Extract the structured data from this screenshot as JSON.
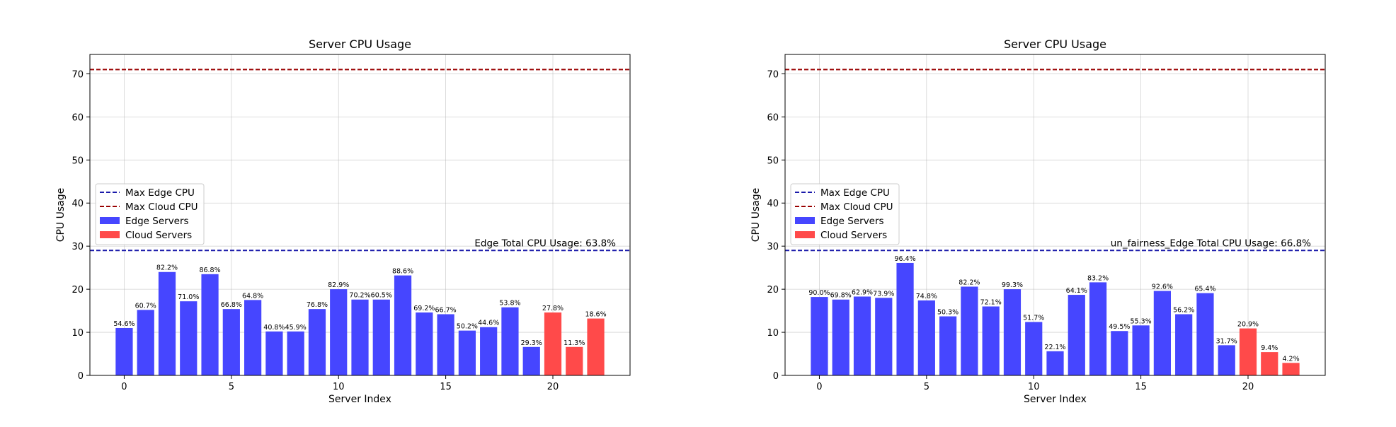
{
  "colors": {
    "edge": "#4646ff",
    "cloud": "#ff4a4a",
    "edge_line": "#1a1aaa",
    "cloud_line": "#990000"
  },
  "chart_data": [
    {
      "type": "bar",
      "title": "Server CPU Usage",
      "xlabel": "Server Index",
      "ylabel": "CPU Usage",
      "xlim": [
        -1.6,
        23.6
      ],
      "ylim": [
        0,
        74.5
      ],
      "xticks": [
        "0",
        "5",
        "10",
        "15",
        "20"
      ],
      "yticks": [
        "0",
        "10",
        "20",
        "30",
        "40",
        "50",
        "60",
        "70"
      ],
      "grid": true,
      "legend_position": "center-left",
      "legend": [
        "Max Edge CPU",
        "Max Cloud CPU",
        "Edge Servers",
        "Cloud Servers"
      ],
      "hlines": [
        {
          "name": "Max Edge CPU",
          "y": 29,
          "style": "dashed",
          "color": "edge_line"
        },
        {
          "name": "Max Cloud CPU",
          "y": 71,
          "style": "dashed",
          "color": "cloud_line"
        }
      ],
      "annotation": "Edge Total CPU Usage: 63.8%",
      "x": [
        0,
        1,
        2,
        3,
        4,
        5,
        6,
        7,
        8,
        9,
        10,
        11,
        12,
        13,
        14,
        15,
        16,
        17,
        18,
        19,
        20,
        21,
        22
      ],
      "values": [
        11,
        15.2,
        24,
        17.2,
        23.5,
        15.4,
        17.5,
        10.2,
        10.2,
        15.4,
        20,
        17.6,
        17.6,
        23.2,
        14.6,
        14.2,
        10.4,
        11.2,
        15.8,
        6.6,
        14.6,
        6.6,
        13.2
      ],
      "labels": [
        "54.6%",
        "60.7%",
        "82.2%",
        "71.0%",
        "86.8%",
        "66.8%",
        "64.8%",
        "40.8%",
        "45.9%",
        "76.8%",
        "82.9%",
        "70.2%",
        "60.5%",
        "88.6%",
        "69.2%",
        "66.7%",
        "50.2%",
        "44.6%",
        "53.8%",
        "29.3%",
        "27.8%",
        "11.3%",
        "18.6%"
      ],
      "series_type": [
        "edge",
        "edge",
        "edge",
        "edge",
        "edge",
        "edge",
        "edge",
        "edge",
        "edge",
        "edge",
        "edge",
        "edge",
        "edge",
        "edge",
        "edge",
        "edge",
        "edge",
        "edge",
        "edge",
        "edge",
        "cloud",
        "cloud",
        "cloud"
      ]
    },
    {
      "type": "bar",
      "title": "Server CPU Usage",
      "xlabel": "Server Index",
      "ylabel": "CPU Usage",
      "xlim": [
        -1.6,
        23.6
      ],
      "ylim": [
        0,
        74.5
      ],
      "xticks": [
        "0",
        "5",
        "10",
        "15",
        "20"
      ],
      "yticks": [
        "0",
        "10",
        "20",
        "30",
        "40",
        "50",
        "60",
        "70"
      ],
      "grid": true,
      "legend_position": "center-left",
      "legend": [
        "Max Edge CPU",
        "Max Cloud CPU",
        "Edge Servers",
        "Cloud Servers"
      ],
      "hlines": [
        {
          "name": "Max Edge CPU",
          "y": 29,
          "style": "dashed",
          "color": "edge_line"
        },
        {
          "name": "Max Cloud CPU",
          "y": 71,
          "style": "dashed",
          "color": "cloud_line"
        }
      ],
      "annotation": "un_fairness_Edge Total CPU Usage: 66.8%",
      "x": [
        0,
        1,
        2,
        3,
        4,
        5,
        6,
        7,
        8,
        9,
        10,
        11,
        12,
        13,
        14,
        15,
        16,
        17,
        18,
        19,
        20,
        21,
        22
      ],
      "values": [
        18.2,
        17.6,
        18.3,
        18,
        26.1,
        17.4,
        13.7,
        20.6,
        16,
        20,
        12.4,
        5.6,
        18.7,
        21.6,
        10.3,
        11.6,
        19.6,
        14.2,
        19.1,
        7,
        10.9,
        5.4,
        2.9
      ],
      "labels": [
        "90.0%",
        "69.8%",
        "62.9%",
        "73.9%",
        "96.4%",
        "74.8%",
        "50.3%",
        "82.2%",
        "72.1%",
        "99.3%",
        "51.7%",
        "22.1%",
        "64.1%",
        "83.2%",
        "49.5%",
        "55.3%",
        "92.6%",
        "56.2%",
        "65.4%",
        "31.7%",
        "20.9%",
        "9.4%",
        "4.2%"
      ],
      "series_type": [
        "edge",
        "edge",
        "edge",
        "edge",
        "edge",
        "edge",
        "edge",
        "edge",
        "edge",
        "edge",
        "edge",
        "edge",
        "edge",
        "edge",
        "edge",
        "edge",
        "edge",
        "edge",
        "edge",
        "edge",
        "cloud",
        "cloud",
        "cloud"
      ]
    }
  ]
}
